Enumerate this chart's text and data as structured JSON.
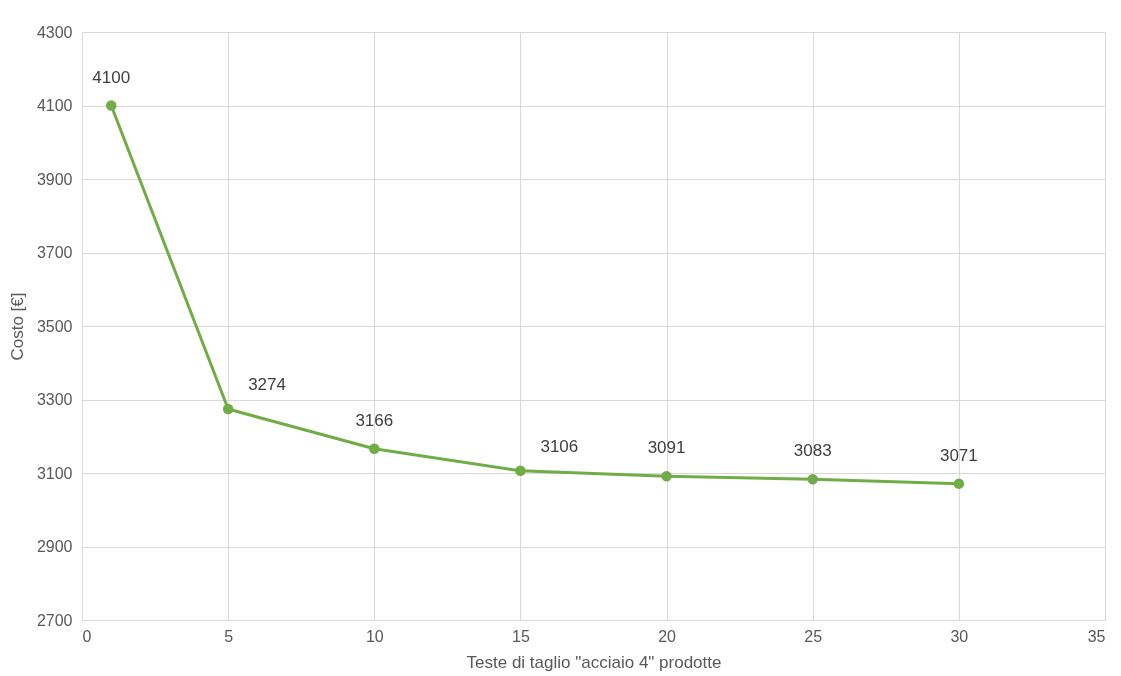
{
  "chart_data": {
    "type": "line",
    "xlabel": "Teste di taglio \"acciaio 4\" prodotte",
    "ylabel": "Costo [€]",
    "x": [
      1,
      5,
      10,
      15,
      20,
      25,
      30
    ],
    "series": [
      {
        "color": "#70ad47",
        "values": [
          4100,
          3274,
          3166,
          3106,
          3091,
          3083,
          3071
        ]
      }
    ],
    "xlim": [
      0,
      35
    ],
    "xticks": [
      0,
      5,
      10,
      15,
      20,
      25,
      30,
      35
    ],
    "ylim": [
      2700,
      4300
    ],
    "yticks": [
      2700,
      2900,
      3100,
      3300,
      3500,
      3700,
      3900,
      4100,
      4300
    ],
    "grid": true,
    "marker": "circle",
    "line_style": "solid",
    "data_labels": true
  }
}
